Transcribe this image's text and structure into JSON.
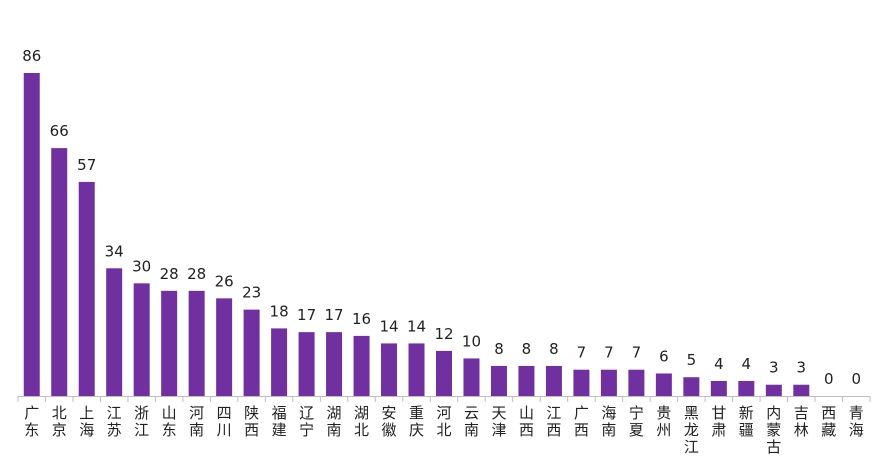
{
  "chart_data": {
    "type": "bar",
    "title": "",
    "xlabel": "",
    "ylabel": "",
    "categories": [
      "广东",
      "北京",
      "上海",
      "江苏",
      "浙江",
      "山东",
      "河南",
      "四川",
      "陕西",
      "福建",
      "辽宁",
      "湖南",
      "湖北",
      "安徽",
      "重庆",
      "河北",
      "云南",
      "天津",
      "山西",
      "江西",
      "广西",
      "海南",
      "宁夏",
      "贵州",
      "黑龙江",
      "甘肃",
      "新疆",
      "内蒙古",
      "吉林",
      "西藏",
      "青海"
    ],
    "values": [
      86,
      66,
      57,
      34,
      30,
      28,
      28,
      26,
      23,
      18,
      17,
      17,
      16,
      14,
      14,
      12,
      10,
      8,
      8,
      8,
      7,
      7,
      7,
      6,
      5,
      4,
      4,
      3,
      3,
      0,
      0
    ],
    "ylim": [
      0,
      86
    ],
    "grid": false,
    "legend": "none",
    "bar_color": "#7030a0",
    "data_labels": true
  }
}
